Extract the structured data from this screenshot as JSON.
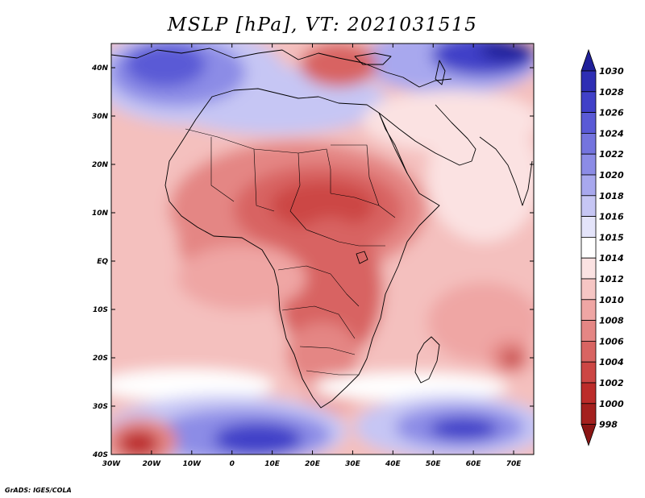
{
  "title": "MSLP [hPa], VT: 2021031515",
  "credit": "GrADS: IGES/COLA",
  "map": {
    "region": "Africa and Middle East",
    "variable": "Mean sea level pressure",
    "units": "hPa",
    "lon_range": [
      -30,
      75
    ],
    "lat_range": [
      -40,
      45
    ],
    "lon_ticks": [
      {
        "value": -30,
        "label": "30W"
      },
      {
        "value": -20,
        "label": "20W"
      },
      {
        "value": -10,
        "label": "10W"
      },
      {
        "value": 0,
        "label": "0"
      },
      {
        "value": 10,
        "label": "10E"
      },
      {
        "value": 20,
        "label": "20E"
      },
      {
        "value": 30,
        "label": "30E"
      },
      {
        "value": 40,
        "label": "40E"
      },
      {
        "value": 50,
        "label": "50E"
      },
      {
        "value": 60,
        "label": "60E"
      },
      {
        "value": 70,
        "label": "70E"
      }
    ],
    "lat_ticks": [
      {
        "value": 40,
        "label": "40N"
      },
      {
        "value": 30,
        "label": "30N"
      },
      {
        "value": 20,
        "label": "20N"
      },
      {
        "value": 10,
        "label": "10N"
      },
      {
        "value": 0,
        "label": "EQ"
      },
      {
        "value": -10,
        "label": "10S"
      },
      {
        "value": -20,
        "label": "20S"
      },
      {
        "value": -30,
        "label": "30S"
      },
      {
        "value": -40,
        "label": "40S"
      }
    ],
    "pressure_features": [
      {
        "kind": "high",
        "lon": -20,
        "lat": 40,
        "value": 1026
      },
      {
        "kind": "high",
        "lon": 65,
        "lat": 44,
        "value": 1030
      },
      {
        "kind": "high",
        "lon": 13,
        "lat": -37,
        "value": 1026
      },
      {
        "kind": "high",
        "lon": 57,
        "lat": -35,
        "value": 1024
      },
      {
        "kind": "low",
        "lon": 20,
        "lat": 11,
        "value": 1004
      },
      {
        "kind": "low",
        "lon": 29,
        "lat": 10,
        "value": 1004
      },
      {
        "kind": "low",
        "lon": 25,
        "lat": -15,
        "value": 1006
      },
      {
        "kind": "low",
        "lon": 70,
        "lat": -20.5,
        "value": 1002
      },
      {
        "kind": "low",
        "lon": -23,
        "lat": -38.5,
        "value": 999
      },
      {
        "kind": "low",
        "lon": 25,
        "lat": 44,
        "value": 1006
      }
    ]
  },
  "colorbar": {
    "levels": [
      "1030",
      "1028",
      "1026",
      "1024",
      "1022",
      "1020",
      "1018",
      "1016",
      "1015",
      "1014",
      "1012",
      "1010",
      "1008",
      "1006",
      "1004",
      "1002",
      "1000",
      "998"
    ],
    "colors": [
      "#20209a",
      "#2e2eb4",
      "#4040c8",
      "#5a5ad6",
      "#7474de",
      "#8c8ce6",
      "#a8a8ee",
      "#c6c6f4",
      "#e4e4fa",
      "#ffffff",
      "#fbe2e2",
      "#f6c6c4",
      "#efa6a4",
      "#e48684",
      "#d86462",
      "#cc4644",
      "#bc2c2a",
      "#a4201e",
      "#8a1514"
    ]
  }
}
